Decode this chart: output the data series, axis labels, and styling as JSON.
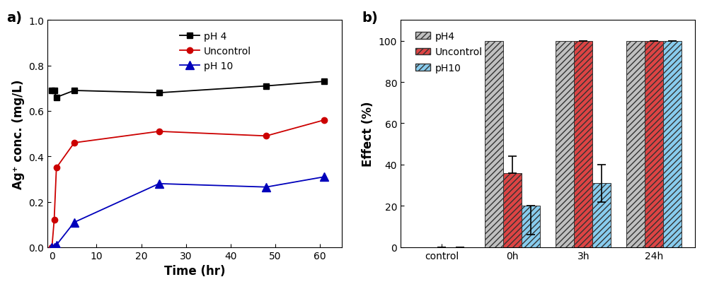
{
  "pH4_x": [
    0,
    0.5,
    1,
    5,
    24,
    48,
    61
  ],
  "pH4_y": [
    0.69,
    0.69,
    0.66,
    0.69,
    0.68,
    0.71,
    0.73
  ],
  "uncontrol_x": [
    0,
    0.5,
    1,
    5,
    24,
    48,
    61
  ],
  "uncontrol_y": [
    0.0,
    0.12,
    0.35,
    0.46,
    0.51,
    0.49,
    0.56
  ],
  "pH10_x": [
    0,
    0.5,
    1,
    5,
    24,
    48,
    61
  ],
  "pH10_y": [
    0.0,
    0.0,
    0.01,
    0.11,
    0.28,
    0.265,
    0.31
  ],
  "bar_categories": [
    "control",
    "0h",
    "3h",
    "24h"
  ],
  "bar_pH4": [
    0,
    100,
    100,
    100
  ],
  "bar_uncontrol": [
    0,
    36,
    100,
    100
  ],
  "bar_pH10": [
    0,
    20,
    31,
    100
  ],
  "err_uncontrol_low": [
    0,
    0,
    0,
    0
  ],
  "err_uncontrol_high": [
    0,
    8,
    0,
    0
  ],
  "err_pH10_low": [
    0,
    14,
    9,
    0
  ],
  "err_pH10_high": [
    0,
    0,
    9,
    0
  ],
  "line_color_pH4": "#000000",
  "line_color_uncontrol": "#cc0000",
  "line_color_pH10": "#0000bb",
  "bar_color_pH4": "#c0c0c0",
  "bar_color_uncontrol": "#dd4444",
  "bar_color_pH10": "#88ccee",
  "bar_edge_color": "#333333",
  "ylabel_left": "Ag⁺ conc. (mg/L)",
  "xlabel_left": "Time (hr)",
  "ylabel_right": "Effect (%)",
  "label_left": "a)",
  "label_right": "b)",
  "ylim_left": [
    0.0,
    1.0
  ],
  "xlim_left": [
    -1,
    65
  ],
  "ylim_right": [
    0,
    110
  ],
  "xticks_left": [
    0,
    10,
    20,
    30,
    40,
    50,
    60
  ],
  "yticks_left": [
    0.0,
    0.2,
    0.4,
    0.6,
    0.8,
    1.0
  ],
  "yticks_right": [
    0,
    20,
    40,
    60,
    80,
    100
  ]
}
